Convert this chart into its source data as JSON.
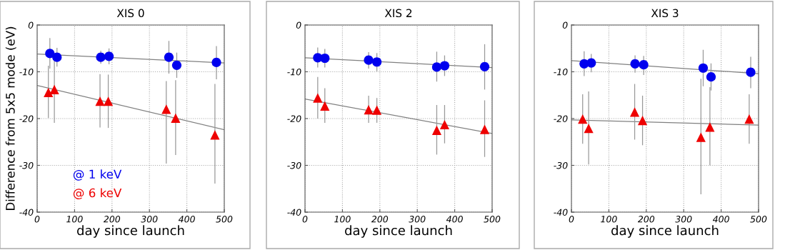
{
  "chart_data": [
    {
      "type": "scatter",
      "title": "XIS 0",
      "xlabel": "day since launch",
      "ylabel": "Difference from 5x5 mode (eV)",
      "xlim": [
        0,
        500
      ],
      "xticks": [
        0,
        100,
        200,
        300,
        400,
        500
      ],
      "ylim": [
        -40,
        0
      ],
      "yticks": [
        -40,
        -30,
        -20,
        -10,
        0
      ],
      "grid": true,
      "legend": false,
      "series": [
        {
          "name": "@ 1 keV",
          "color": "#0000ee",
          "marker": "circle",
          "x": [
            34,
            53,
            170,
            192,
            352,
            373,
            479
          ],
          "values": [
            -6.1,
            -6.9,
            -6.9,
            -6.7,
            -6.9,
            -8.6,
            -8.0
          ],
          "errors": [
            [
              -9.3,
              -2.8
            ],
            [
              -8.9,
              -4.9
            ],
            [
              -8.3,
              -5.5
            ],
            [
              -8.4,
              -5.0
            ],
            [
              -10.4,
              -3.4
            ],
            [
              -11.3,
              -5.9
            ],
            [
              -11.6,
              -4.5
            ]
          ]
        },
        {
          "name": "@ 6 keV",
          "color": "#ee0000",
          "marker": "triangle",
          "x": [
            30,
            46,
            168,
            190,
            345,
            370,
            475
          ],
          "values": [
            -14.4,
            -13.8,
            -16.3,
            -16.3,
            -18.0,
            -19.9,
            -23.5
          ],
          "errors": [
            [
              -19.9,
              -8.7
            ],
            [
              -20.9,
              -7.6
            ],
            [
              -21.9,
              -10.5
            ],
            [
              -22.0,
              -10.6
            ],
            [
              -29.6,
              -12.0
            ],
            [
              -27.8,
              -11.8
            ],
            [
              -33.9,
              -12.6
            ]
          ]
        },
        {
          "type": "line",
          "color": "#808080",
          "x": [
            0,
            500
          ],
          "values": [
            -6.2,
            -8.1
          ]
        },
        {
          "type": "line",
          "color": "#808080",
          "x": [
            0,
            500
          ],
          "values": [
            -12.9,
            -22.4
          ]
        }
      ]
    },
    {
      "type": "scatter",
      "title": "XIS 2",
      "xlabel": "day since launch",
      "xlim": [
        0,
        500
      ],
      "xticks": [
        0,
        100,
        200,
        300,
        400,
        500
      ],
      "ylim": [
        -40,
        0
      ],
      "yticks": [
        -40,
        -30,
        -20,
        -10,
        0
      ],
      "grid": true,
      "legend": false,
      "series": [
        {
          "color": "#0000ee",
          "marker": "circle",
          "x": [
            34,
            53,
            170,
            192,
            352,
            373,
            480
          ],
          "values": [
            -7.0,
            -7.1,
            -7.5,
            -7.9,
            -9.0,
            -8.7,
            -8.9
          ],
          "errors": [
            [
              -9.1,
              -4.8
            ],
            [
              -9.1,
              -5.1
            ],
            [
              -9.3,
              -5.8
            ],
            [
              -9.9,
              -6.0
            ],
            [
              -12.1,
              -5.7
            ],
            [
              -10.9,
              -6.5
            ],
            [
              -13.8,
              -4.1
            ]
          ]
        },
        {
          "color": "#ee0000",
          "marker": "triangle",
          "x": [
            34,
            53,
            170,
            192,
            352,
            373,
            480
          ],
          "values": [
            -15.6,
            -17.3,
            -18.1,
            -18.2,
            -22.5,
            -21.3,
            -22.3
          ],
          "errors": [
            [
              -20.0,
              -11.1
            ],
            [
              -20.9,
              -13.5
            ],
            [
              -20.9,
              -15.1
            ],
            [
              -20.9,
              -15.6
            ],
            [
              -27.7,
              -17.1
            ],
            [
              -25.3,
              -17.1
            ],
            [
              -28.2,
              -16.1
            ]
          ]
        },
        {
          "type": "line",
          "color": "#808080",
          "x": [
            0,
            500
          ],
          "values": [
            -7.0,
            -9.1
          ]
        },
        {
          "type": "line",
          "color": "#808080",
          "x": [
            0,
            500
          ],
          "values": [
            -15.8,
            -23.2
          ]
        }
      ]
    },
    {
      "type": "scatter",
      "title": "XIS 3",
      "xlabel": "day since launch",
      "xlim": [
        0,
        500
      ],
      "xticks": [
        0,
        100,
        200,
        300,
        400,
        500
      ],
      "ylim": [
        -40,
        0
      ],
      "yticks": [
        -40,
        -30,
        -20,
        -10,
        0
      ],
      "grid": true,
      "legend": false,
      "series": [
        {
          "color": "#0000ee",
          "marker": "circle",
          "x": [
            34,
            53,
            170,
            193,
            352,
            373,
            479
          ],
          "values": [
            -8.3,
            -8.1,
            -8.3,
            -8.5,
            -9.2,
            -11.1,
            -10.1
          ],
          "errors": [
            [
              -10.9,
              -5.6
            ],
            [
              -10.1,
              -6.2
            ],
            [
              -10.2,
              -6.5
            ],
            [
              -10.7,
              -6.6
            ],
            [
              -13.1,
              -5.3
            ],
            [
              -14.0,
              -8.2
            ],
            [
              -13.5,
              -6.8
            ]
          ]
        },
        {
          "color": "#ee0000",
          "marker": "triangle",
          "x": [
            30,
            46,
            169,
            190,
            346,
            370,
            475
          ],
          "values": [
            -20.1,
            -22.1,
            -18.6,
            -20.4,
            -24.0,
            -21.8,
            -20.1
          ],
          "errors": [
            [
              -25.4,
              -14.8
            ],
            [
              -29.8,
              -14.2
            ],
            [
              -24.5,
              -12.6
            ],
            [
              -25.7,
              -15.1
            ],
            [
              -36.2,
              -11.5
            ],
            [
              -30.0,
              -13.3
            ],
            [
              -25.4,
              -14.8
            ]
          ]
        },
        {
          "type": "line",
          "color": "#808080",
          "x": [
            0,
            500
          ],
          "values": [
            -7.6,
            -10.4
          ]
        },
        {
          "type": "line",
          "color": "#808080",
          "x": [
            0,
            500
          ],
          "values": [
            -20.3,
            -21.4
          ]
        }
      ]
    }
  ]
}
